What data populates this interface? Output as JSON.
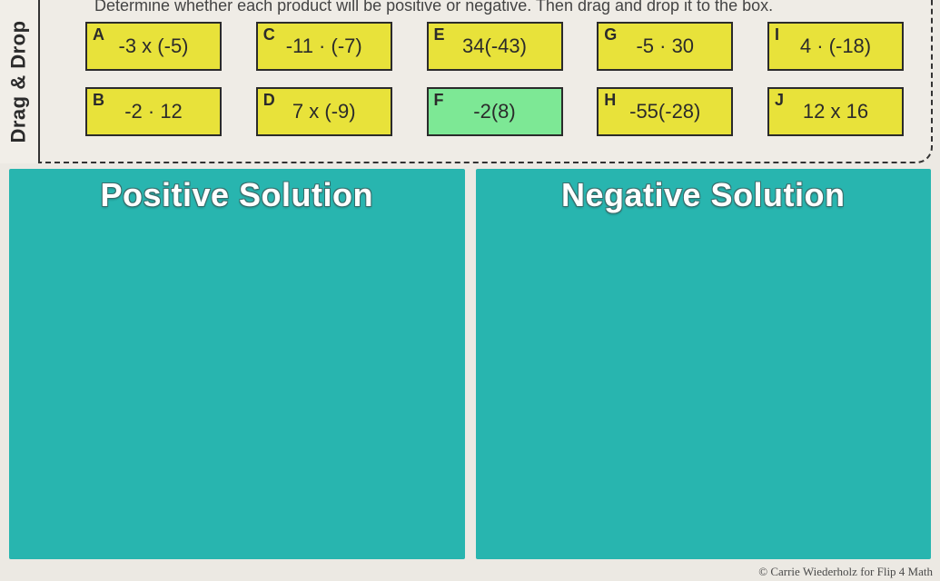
{
  "sidebar_label": "Drag & Drop",
  "instructions": "Determine whether each product will be positive or negative.  Then drag and drop it to the box.",
  "card_colors": {
    "yellow": "#e8e23a",
    "green": "#7de895",
    "border": "#2b2b2b"
  },
  "cards_row1": [
    {
      "letter": "A",
      "expr": "-3 x (-5)",
      "fill": "#e8e23a"
    },
    {
      "letter": "C",
      "expr": "-11 · (-7)",
      "fill": "#e8e23a"
    },
    {
      "letter": "E",
      "expr": "34(-43)",
      "fill": "#e8e23a"
    },
    {
      "letter": "G",
      "expr": "-5 · 30",
      "fill": "#e8e23a"
    },
    {
      "letter": "I",
      "expr": "4 · (-18)",
      "fill": "#e8e23a"
    }
  ],
  "cards_row2": [
    {
      "letter": "B",
      "expr": "-2 · 12",
      "fill": "#e8e23a"
    },
    {
      "letter": "D",
      "expr": "7 x (-9)",
      "fill": "#e8e23a"
    },
    {
      "letter": "F",
      "expr": "-2(8)",
      "fill": "#7de895"
    },
    {
      "letter": "H",
      "expr": "-55(-28)",
      "fill": "#e8e23a"
    },
    {
      "letter": "J",
      "expr": "12 x 16",
      "fill": "#e8e23a"
    }
  ],
  "dropzones": {
    "positive": {
      "title": "Positive Solution",
      "bg": "#28b5af"
    },
    "negative": {
      "title": "Negative Solution",
      "bg": "#28b5af"
    }
  },
  "credit": "© Carrie Wiederholz for Flip 4 Math",
  "page_bg": "#ece9e3"
}
